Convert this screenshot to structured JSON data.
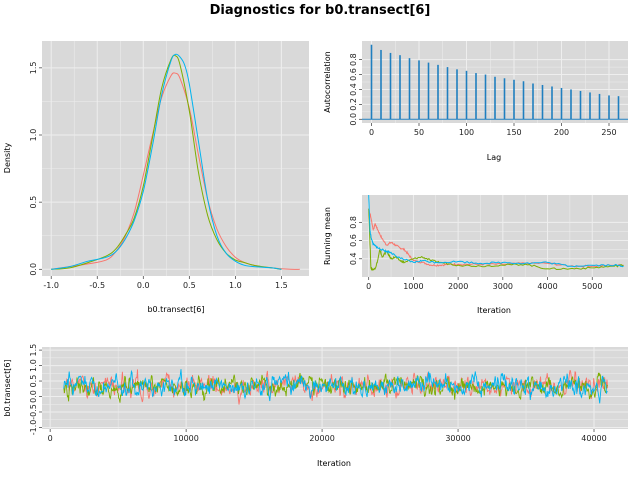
{
  "figure": {
    "title": "Diagnostics for b0.transect[6]"
  },
  "colors": {
    "panel_bg": "#d9d9d9",
    "grid": "#eeeeee",
    "chain1": "#f8766d",
    "chain2": "#7cae00",
    "chain3": "#00b4ef",
    "acf_bar": "#1f7fbf"
  },
  "chart_data": [
    {
      "id": "density",
      "type": "line",
      "xlabel": "b0.transect[6]",
      "ylabel": "Density",
      "xlim": [
        -1.1,
        1.8
      ],
      "ylim": [
        -0.05,
        1.7
      ],
      "xticks": [
        -1.0,
        -0.5,
        0.0,
        0.5,
        1.0,
        1.5
      ],
      "xtick_labels": [
        "-1.0",
        "-0.5",
        "0.0",
        "0.5",
        "1.0",
        "1.5"
      ],
      "yticks": [
        0.0,
        0.5,
        1.0,
        1.5
      ],
      "ytick_labels": [
        "0.0",
        "0.5",
        "1.0",
        "1.5"
      ],
      "grid": true,
      "series": [
        {
          "color": "#f8766d",
          "x": [
            -1.0,
            -0.8,
            -0.6,
            -0.4,
            -0.3,
            -0.2,
            -0.1,
            0.0,
            0.1,
            0.2,
            0.3,
            0.35,
            0.4,
            0.5,
            0.6,
            0.7,
            0.8,
            0.9,
            1.0,
            1.1,
            1.2,
            1.4,
            1.6,
            1.7
          ],
          "y": [
            0.0,
            0.02,
            0.04,
            0.07,
            0.13,
            0.24,
            0.42,
            0.7,
            1.0,
            1.28,
            1.44,
            1.46,
            1.42,
            1.2,
            0.85,
            0.52,
            0.3,
            0.17,
            0.09,
            0.05,
            0.03,
            0.01,
            0.0,
            0.0
          ]
        },
        {
          "color": "#7cae00",
          "x": [
            -1.0,
            -0.8,
            -0.6,
            -0.4,
            -0.3,
            -0.2,
            -0.1,
            0.0,
            0.1,
            0.2,
            0.3,
            0.35,
            0.4,
            0.5,
            0.6,
            0.7,
            0.8,
            0.9,
            1.0,
            1.1,
            1.2,
            1.4,
            1.5
          ],
          "y": [
            0.0,
            0.01,
            0.05,
            0.1,
            0.15,
            0.25,
            0.38,
            0.62,
            0.98,
            1.35,
            1.56,
            1.59,
            1.52,
            1.18,
            0.72,
            0.4,
            0.22,
            0.12,
            0.07,
            0.05,
            0.03,
            0.01,
            0.0
          ]
        },
        {
          "color": "#00b4ef",
          "x": [
            -1.0,
            -0.8,
            -0.6,
            -0.4,
            -0.3,
            -0.2,
            -0.1,
            0.0,
            0.1,
            0.2,
            0.3,
            0.35,
            0.4,
            0.45,
            0.5,
            0.6,
            0.7,
            0.8,
            0.9,
            1.0,
            1.1,
            1.2,
            1.4,
            1.5
          ],
          "y": [
            0.0,
            0.02,
            0.06,
            0.09,
            0.13,
            0.22,
            0.36,
            0.58,
            0.92,
            1.3,
            1.55,
            1.6,
            1.58,
            1.52,
            1.38,
            0.95,
            0.52,
            0.25,
            0.12,
            0.06,
            0.03,
            0.02,
            0.01,
            0.0
          ]
        }
      ]
    },
    {
      "id": "autocorrelation",
      "type": "bar",
      "xlabel": "Lag",
      "ylabel": "Autocorrelation",
      "xlim": [
        -10,
        270
      ],
      "ylim": [
        -0.05,
        1.05
      ],
      "xticks": [
        0,
        50,
        100,
        150,
        200,
        250
      ],
      "xtick_labels": [
        "0",
        "50",
        "100",
        "150",
        "200",
        "250"
      ],
      "yticks": [
        0.0,
        0.2,
        0.4,
        0.6,
        0.8
      ],
      "ytick_labels": [
        "0.0",
        "0.2",
        "0.4",
        "0.6",
        "0.8"
      ],
      "grid": true,
      "x": [
        0,
        10,
        20,
        30,
        40,
        50,
        60,
        70,
        80,
        90,
        100,
        110,
        120,
        130,
        140,
        150,
        160,
        170,
        180,
        190,
        200,
        210,
        220,
        230,
        240,
        250,
        260
      ],
      "values": [
        1.0,
        0.93,
        0.89,
        0.86,
        0.82,
        0.79,
        0.76,
        0.73,
        0.7,
        0.67,
        0.65,
        0.62,
        0.6,
        0.57,
        0.55,
        0.53,
        0.51,
        0.48,
        0.46,
        0.44,
        0.42,
        0.4,
        0.38,
        0.36,
        0.34,
        0.32,
        0.31
      ]
    },
    {
      "id": "running_mean",
      "type": "line",
      "xlabel": "Iteration",
      "ylabel": "Running mean",
      "xlim": [
        -150,
        5800
      ],
      "ylim": [
        0.2,
        1.1
      ],
      "xticks": [
        0,
        1000,
        2000,
        3000,
        4000,
        5000
      ],
      "xtick_labels": [
        "0",
        "1000",
        "2000",
        "3000",
        "4000",
        "5000"
      ],
      "yticks": [
        0.4,
        0.6,
        0.8
      ],
      "ytick_labels": [
        "0.4",
        "0.6",
        "0.8"
      ],
      "grid": true,
      "series": [
        {
          "color": "#f8766d",
          "x": [
            0,
            50,
            100,
            150,
            200,
            300,
            400,
            500,
            600,
            700,
            800,
            900,
            1000,
            1200,
            1400,
            1600,
            1800,
            2000,
            2500,
            3000,
            3500,
            4000,
            4500,
            5000,
            5500,
            5700
          ],
          "y": [
            0.95,
            0.85,
            0.72,
            0.78,
            0.72,
            0.62,
            0.55,
            0.58,
            0.55,
            0.52,
            0.5,
            0.44,
            0.38,
            0.36,
            0.33,
            0.33,
            0.34,
            0.34,
            0.34,
            0.34,
            0.35,
            0.35,
            0.32,
            0.32,
            0.33,
            0.33
          ]
        },
        {
          "color": "#7cae00",
          "x": [
            0,
            50,
            100,
            150,
            200,
            250,
            300,
            400,
            500,
            600,
            700,
            800,
            1000,
            1200,
            1400,
            1600,
            2000,
            2500,
            3000,
            3500,
            4000,
            4500,
            5000,
            5500,
            5700
          ],
          "y": [
            0.95,
            0.3,
            0.28,
            0.3,
            0.38,
            0.5,
            0.42,
            0.48,
            0.4,
            0.42,
            0.38,
            0.36,
            0.4,
            0.42,
            0.38,
            0.36,
            0.33,
            0.32,
            0.33,
            0.34,
            0.29,
            0.29,
            0.3,
            0.32,
            0.33
          ]
        },
        {
          "color": "#00b4ef",
          "x": [
            0,
            30,
            60,
            100,
            150,
            200,
            300,
            400,
            500,
            600,
            800,
            1000,
            1200,
            1500,
            2000,
            2500,
            3000,
            3500,
            4000,
            4500,
            5000,
            5500,
            5700
          ],
          "y": [
            1.1,
            0.7,
            0.62,
            0.56,
            0.54,
            0.52,
            0.5,
            0.48,
            0.47,
            0.43,
            0.39,
            0.36,
            0.38,
            0.36,
            0.37,
            0.35,
            0.36,
            0.35,
            0.36,
            0.32,
            0.33,
            0.33,
            0.32
          ]
        }
      ]
    },
    {
      "id": "trace",
      "type": "line",
      "xlabel": "Iteration",
      "ylabel": "b0.transect[6]",
      "xlim": [
        -600,
        42500
      ],
      "ylim": [
        -1.05,
        1.6
      ],
      "xticks": [
        0,
        10000,
        20000,
        30000,
        40000
      ],
      "xtick_labels": [
        "0",
        "10000",
        "20000",
        "30000",
        "40000"
      ],
      "yticks": [
        -1.0,
        -0.5,
        0.0,
        0.5,
        1.0,
        1.5
      ],
      "ytick_labels": [
        "-1.0",
        "-0.5",
        "0.0",
        "0.5",
        "1.0",
        "1.5"
      ],
      "grid": true,
      "iteration_range": [
        1000,
        41000
      ],
      "series": [
        {
          "color": "#f8766d",
          "center": 0.35,
          "spread": 0.3,
          "min": -0.95,
          "max": 1.55
        },
        {
          "color": "#7cae00",
          "center": 0.32,
          "spread": 0.28,
          "min": -0.7,
          "max": 1.35
        },
        {
          "color": "#00b4ef",
          "center": 0.35,
          "spread": 0.28,
          "min": -0.95,
          "max": 1.45
        }
      ]
    }
  ]
}
